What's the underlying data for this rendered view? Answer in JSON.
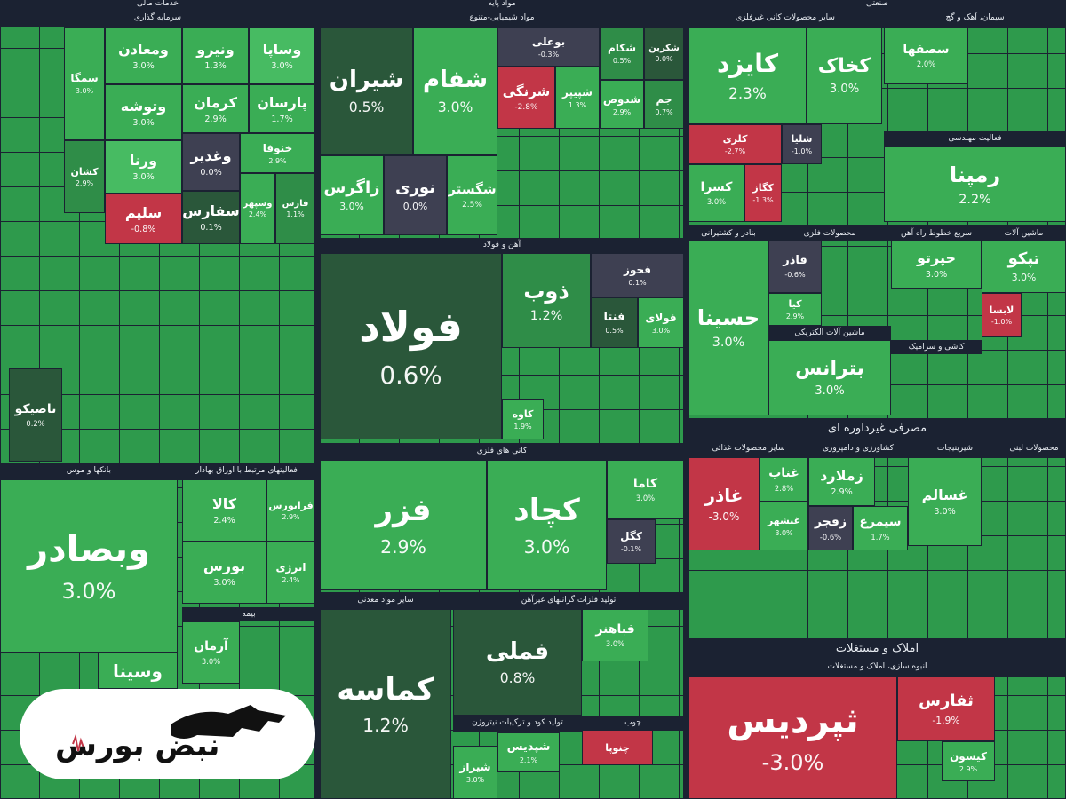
{
  "headers": [
    "خدمات مالی",
    "سرمایه گذاری",
    "مواد پایه",
    "مواد شیمیایی-متنوع",
    "صنعتی",
    "سایر محصولات کانی غیرفلزی",
    "سیمان، آهک و گچ",
    "فعالیت مهندسی",
    "آهن و فولاد",
    "کانی های فلزی",
    "سایر مواد معدنی",
    "تولید فلزات گرانبهای غیرآهن",
    "تولید کود و ترکیبات نیتروژن",
    "چوب",
    "بانکها و موس",
    "فعالیتهای مرتبط با اوراق بهادار",
    "بیمه",
    "بنادر و کشتیرانی",
    "محصولات فلزی",
    "سریع خطوط راه آهن",
    "ماشین آلات",
    "ماشین آلات الکتریکی",
    "کاشی و سرامیک",
    "مصرفی غیرداوره ای",
    "سایر محصولات غذائی",
    "کشاورزی و دامپروری",
    "شیرینیجات",
    "محصولات لبنی",
    "املاک و مستغلات",
    "انبوه سازی، املاک و مستغلات"
  ],
  "tiles": [
    {
      "symbol": "سمگا",
      "change": "3.0%"
    },
    {
      "symbol": "ومعادن",
      "change": "3.0%"
    },
    {
      "symbol": "ونیرو",
      "change": "1.3%"
    },
    {
      "symbol": "وساپا",
      "change": "3.0%"
    },
    {
      "symbol": "وتوشه",
      "change": "3.0%"
    },
    {
      "symbol": "کرمان",
      "change": "2.9%"
    },
    {
      "symbol": "پارسان",
      "change": "1.7%"
    },
    {
      "symbol": "ورنا",
      "change": "3.0%"
    },
    {
      "symbol": "وغدیر",
      "change": "0.0%"
    },
    {
      "symbol": "خنوفا",
      "change": "2.9%"
    },
    {
      "symbol": "کشان",
      "change": "2.9%"
    },
    {
      "symbol": "سلیم",
      "change": "-0.8%"
    },
    {
      "symbol": "سفارس",
      "change": "0.1%"
    },
    {
      "symbol": "وسپهر",
      "change": "2.4%"
    },
    {
      "symbol": "فارس",
      "change": "1.1%"
    },
    {
      "symbol": "تاصیکو",
      "change": "0.2%"
    },
    {
      "symbol": "وبصادر",
      "change": "3.0%"
    },
    {
      "symbol": "وسینا"
    },
    {
      "symbol": "کالا",
      "change": "2.4%"
    },
    {
      "symbol": "فرابورس",
      "change": "2.9%"
    },
    {
      "symbol": "بورس",
      "change": "3.0%"
    },
    {
      "symbol": "انرژی",
      "change": "2.4%"
    },
    {
      "symbol": "آرمان",
      "change": "3.0%"
    },
    {
      "symbol": "شیران",
      "change": "0.5%"
    },
    {
      "symbol": "شفام",
      "change": "3.0%"
    },
    {
      "symbol": "بوعلی",
      "change": "-0.3%"
    },
    {
      "symbol": "شرنگی",
      "change": "-2.8%"
    },
    {
      "symbol": "شپیپر",
      "change": "1.3%"
    },
    {
      "symbol": "شکام",
      "change": "0.5%"
    },
    {
      "symbol": "شکربن",
      "change": "0.0%"
    },
    {
      "symbol": "شدوص",
      "change": "2.9%"
    },
    {
      "symbol": "جم",
      "change": "0.7%"
    },
    {
      "symbol": "زاگرس",
      "change": "3.0%"
    },
    {
      "symbol": "نوری",
      "change": "0.0%"
    },
    {
      "symbol": "شگستر",
      "change": "2.5%"
    },
    {
      "symbol": "فولاد",
      "change": "0.6%"
    },
    {
      "symbol": "ذوب",
      "change": "1.2%"
    },
    {
      "symbol": "فخوز",
      "change": "0.1%"
    },
    {
      "symbol": "فنتا",
      "change": "0.5%"
    },
    {
      "symbol": "فولای",
      "change": "3.0%"
    },
    {
      "symbol": "کاوه",
      "change": "1.9%"
    },
    {
      "symbol": "فزر",
      "change": "2.9%"
    },
    {
      "symbol": "کچاد",
      "change": "3.0%"
    },
    {
      "symbol": "کاما",
      "change": "3.0%"
    },
    {
      "symbol": "کگل",
      "change": "-0.1%"
    },
    {
      "symbol": "کماسه",
      "change": "1.2%"
    },
    {
      "symbol": "فملی",
      "change": "0.8%"
    },
    {
      "symbol": "فباهنر",
      "change": "3.0%"
    },
    {
      "symbol": "شپدیس",
      "change": "2.1%"
    },
    {
      "symbol": "شیراز",
      "change": "3.0%"
    },
    {
      "symbol": "چنوپا"
    },
    {
      "symbol": "کایزد",
      "change": "2.3%"
    },
    {
      "symbol": "کخاک",
      "change": "3.0%"
    },
    {
      "symbol": "کلزی",
      "change": "-2.7%"
    },
    {
      "symbol": "شلیا",
      "change": "-1.0%"
    },
    {
      "symbol": "کسرا",
      "change": "3.0%"
    },
    {
      "symbol": "کگاز",
      "change": "-1.3%"
    },
    {
      "symbol": "سصفها",
      "change": "2.0%"
    },
    {
      "symbol": "رمپنا",
      "change": "2.2%"
    },
    {
      "symbol": "حسینا",
      "change": "3.0%"
    },
    {
      "symbol": "فاذر",
      "change": "-0.6%"
    },
    {
      "symbol": "کیا",
      "change": "2.9%"
    },
    {
      "symbol": "حپرتو",
      "change": "3.0%"
    },
    {
      "symbol": "تپکو",
      "change": "3.0%"
    },
    {
      "symbol": "لابسا",
      "change": "-1.0%"
    },
    {
      "symbol": "بترانس",
      "change": "3.0%"
    },
    {
      "symbol": "غاذر",
      "change": "-3.0%"
    },
    {
      "symbol": "غناب",
      "change": "2.8%"
    },
    {
      "symbol": "غبشهر",
      "change": "3.0%"
    },
    {
      "symbol": "زملارد",
      "change": "2.9%"
    },
    {
      "symbol": "زفجر",
      "change": "-0.6%"
    },
    {
      "symbol": "سیمرغ",
      "change": "1.7%"
    },
    {
      "symbol": "غسالم",
      "change": "3.0%"
    },
    {
      "symbol": "ثپردیس",
      "change": "-3.0%"
    },
    {
      "symbol": "ثفارس",
      "change": "-1.9%"
    },
    {
      "symbol": "کیسون",
      "change": "2.9%"
    }
  ],
  "logo": {
    "text": "نبض بورس"
  }
}
